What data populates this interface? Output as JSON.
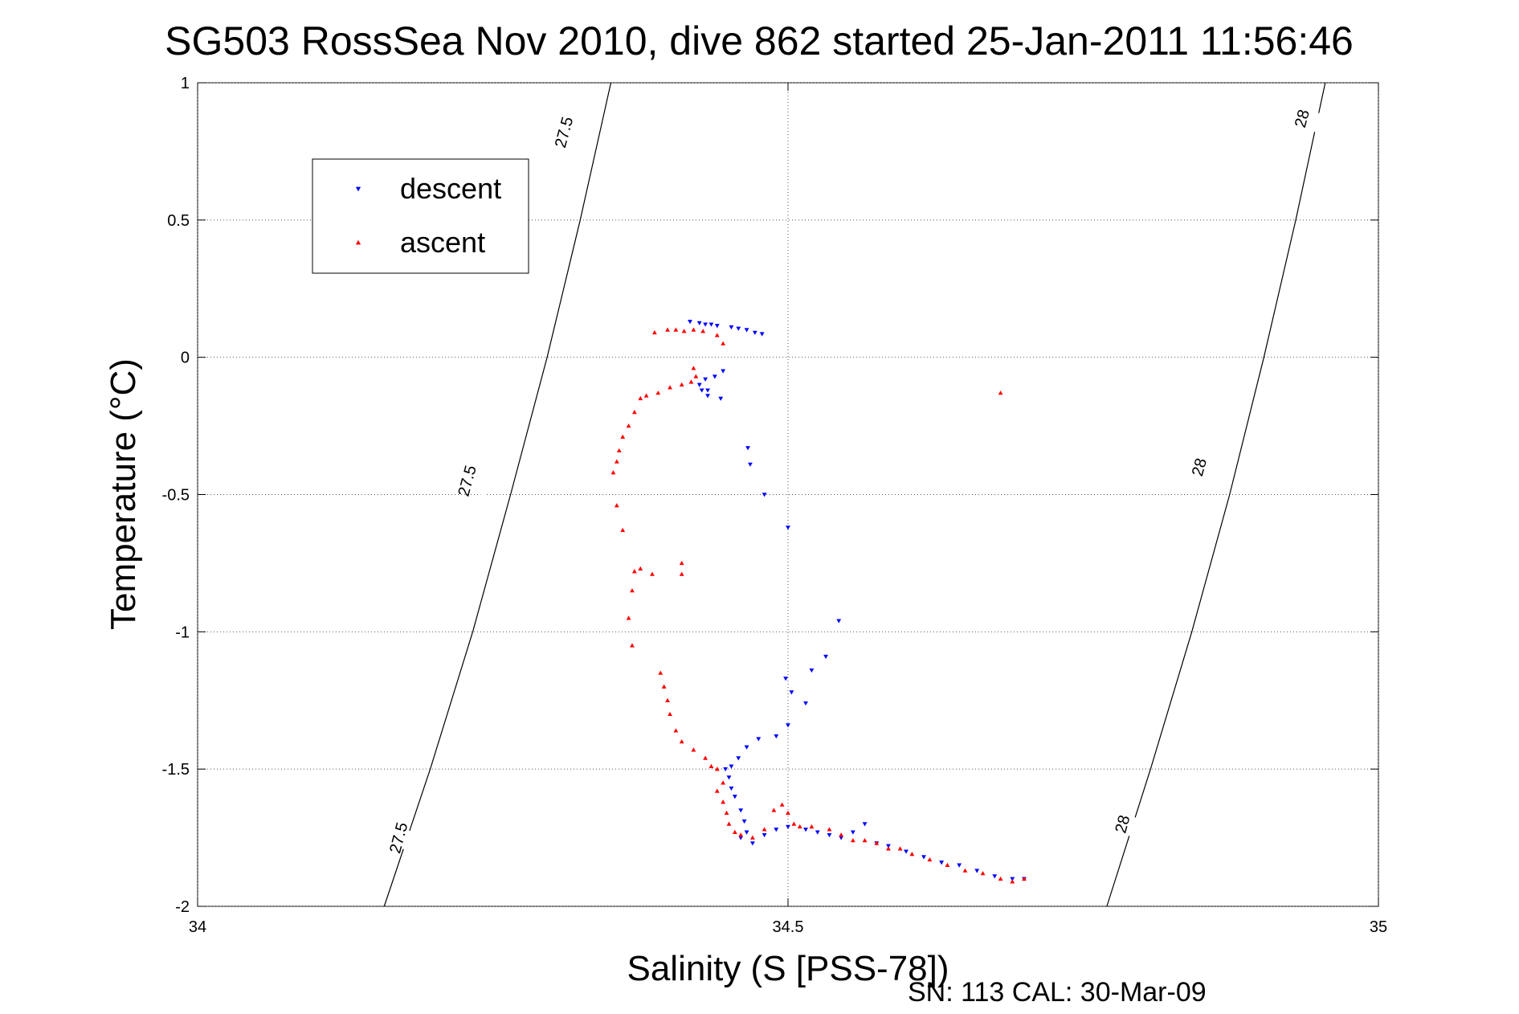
{
  "chart_data": {
    "type": "scatter",
    "title": "SG503 RossSea Nov 2010, dive 862 started 25-Jan-2011 11:56:46",
    "xlabel": "Salinity (S [PSS-78])",
    "ylabel": "Temperature (°C)",
    "footer": "SN: 113  CAL: 30-Mar-09",
    "xlim": [
      34,
      35
    ],
    "ylim": [
      -2,
      1
    ],
    "x_ticks": [
      {
        "value": 34,
        "label": "34"
      },
      {
        "value": 34.5,
        "label": "34.5"
      },
      {
        "value": 35,
        "label": "35"
      }
    ],
    "y_ticks": [
      {
        "value": 1,
        "label": "1"
      },
      {
        "value": 0.5,
        "label": "0.5"
      },
      {
        "value": 0,
        "label": "0"
      },
      {
        "value": -0.5,
        "label": "-0.5"
      },
      {
        "value": -1,
        "label": "-1"
      },
      {
        "value": -1.5,
        "label": "-1.5"
      },
      {
        "value": -2,
        "label": "-2"
      }
    ],
    "grid": true,
    "legend_position": "top-left",
    "contours": [
      {
        "level_label": "27.5",
        "points": [
          [
            34.158,
            -2
          ],
          [
            34.197,
            -1.5
          ],
          [
            34.233,
            -1
          ],
          [
            34.265,
            -0.5
          ],
          [
            34.296,
            0
          ],
          [
            34.324,
            0.5
          ],
          [
            34.35,
            1
          ]
        ],
        "labels_at": [
          [
            34.17,
            -1.75
          ],
          [
            34.228,
            -0.45
          ],
          [
            34.31,
            0.82
          ]
        ]
      },
      {
        "level_label": "28",
        "points": [
          [
            34.77,
            -2
          ],
          [
            34.807,
            -1.5
          ],
          [
            34.842,
            -1
          ],
          [
            34.874,
            -0.5
          ],
          [
            34.903,
            0
          ],
          [
            34.93,
            0.5
          ],
          [
            34.955,
            1
          ]
        ],
        "labels_at": [
          [
            34.783,
            -1.7
          ],
          [
            34.848,
            -0.4
          ],
          [
            34.935,
            0.87
          ]
        ]
      }
    ],
    "series": [
      {
        "name": "descent",
        "color": "#0000ff",
        "marker": "triangle-down",
        "points": [
          [
            34.417,
            0.13
          ],
          [
            34.425,
            0.125
          ],
          [
            34.43,
            0.12
          ],
          [
            34.435,
            0.12
          ],
          [
            34.44,
            0.115
          ],
          [
            34.452,
            0.11
          ],
          [
            34.458,
            0.105
          ],
          [
            34.465,
            0.1
          ],
          [
            34.472,
            0.09
          ],
          [
            34.478,
            0.085
          ],
          [
            34.43,
            -0.08
          ],
          [
            34.425,
            -0.1
          ],
          [
            34.427,
            -0.12
          ],
          [
            34.432,
            -0.12
          ],
          [
            34.438,
            -0.07
          ],
          [
            34.445,
            -0.05
          ],
          [
            34.443,
            -0.15
          ],
          [
            34.432,
            -0.14
          ],
          [
            34.466,
            -0.33
          ],
          [
            34.468,
            -0.39
          ],
          [
            34.48,
            -0.5
          ],
          [
            34.5,
            -0.62
          ],
          [
            34.543,
            -0.96
          ],
          [
            34.532,
            -1.09
          ],
          [
            34.52,
            -1.14
          ],
          [
            34.498,
            -1.17
          ],
          [
            34.503,
            -1.22
          ],
          [
            34.515,
            -1.26
          ],
          [
            34.5,
            -1.34
          ],
          [
            34.49,
            -1.38
          ],
          [
            34.475,
            -1.39
          ],
          [
            34.465,
            -1.42
          ],
          [
            34.458,
            -1.46
          ],
          [
            34.452,
            -1.49
          ],
          [
            34.447,
            -1.5
          ],
          [
            34.45,
            -1.53
          ],
          [
            34.452,
            -1.57
          ],
          [
            34.455,
            -1.6
          ],
          [
            34.46,
            -1.65
          ],
          [
            34.463,
            -1.69
          ],
          [
            34.465,
            -1.73
          ],
          [
            34.46,
            -1.75
          ],
          [
            34.47,
            -1.77
          ],
          [
            34.48,
            -1.74
          ],
          [
            34.49,
            -1.72
          ],
          [
            34.5,
            -1.71
          ],
          [
            34.515,
            -1.72
          ],
          [
            34.525,
            -1.73
          ],
          [
            34.535,
            -1.74
          ],
          [
            34.545,
            -1.75
          ],
          [
            34.555,
            -1.73
          ],
          [
            34.565,
            -1.7
          ],
          [
            34.575,
            -1.77
          ],
          [
            34.585,
            -1.78
          ],
          [
            34.6,
            -1.8
          ],
          [
            34.615,
            -1.82
          ],
          [
            34.63,
            -1.84
          ],
          [
            34.645,
            -1.85
          ],
          [
            34.66,
            -1.87
          ],
          [
            34.675,
            -1.89
          ],
          [
            34.69,
            -1.9
          ],
          [
            34.7,
            -1.9
          ]
        ]
      },
      {
        "name": "ascent",
        "color": "#ff0000",
        "marker": "triangle-up",
        "points": [
          [
            34.387,
            0.09
          ],
          [
            34.398,
            0.1
          ],
          [
            34.405,
            0.1
          ],
          [
            34.412,
            0.095
          ],
          [
            34.42,
            0.1
          ],
          [
            34.428,
            0.095
          ],
          [
            34.44,
            0.08
          ],
          [
            34.445,
            0.05
          ],
          [
            34.42,
            -0.04
          ],
          [
            34.422,
            -0.07
          ],
          [
            34.418,
            -0.09
          ],
          [
            34.41,
            -0.1
          ],
          [
            34.4,
            -0.11
          ],
          [
            34.39,
            -0.13
          ],
          [
            34.38,
            -0.14
          ],
          [
            34.375,
            -0.15
          ],
          [
            34.37,
            -0.2
          ],
          [
            34.365,
            -0.25
          ],
          [
            34.36,
            -0.29
          ],
          [
            34.357,
            -0.34
          ],
          [
            34.355,
            -0.38
          ],
          [
            34.352,
            -0.42
          ],
          [
            34.355,
            -0.54
          ],
          [
            34.36,
            -0.63
          ],
          [
            34.37,
            -0.78
          ],
          [
            34.375,
            -0.77
          ],
          [
            34.385,
            -0.79
          ],
          [
            34.41,
            -0.75
          ],
          [
            34.41,
            -0.79
          ],
          [
            34.368,
            -0.85
          ],
          [
            34.365,
            -0.95
          ],
          [
            34.368,
            -1.05
          ],
          [
            34.392,
            -1.15
          ],
          [
            34.395,
            -1.2
          ],
          [
            34.398,
            -1.25
          ],
          [
            34.4,
            -1.3
          ],
          [
            34.405,
            -1.36
          ],
          [
            34.41,
            -1.4
          ],
          [
            34.42,
            -1.43
          ],
          [
            34.43,
            -1.46
          ],
          [
            34.435,
            -1.49
          ],
          [
            34.44,
            -1.5
          ],
          [
            34.445,
            -1.55
          ],
          [
            34.44,
            -1.58
          ],
          [
            34.445,
            -1.62
          ],
          [
            34.448,
            -1.66
          ],
          [
            34.45,
            -1.7
          ],
          [
            34.455,
            -1.73
          ],
          [
            34.46,
            -1.74
          ],
          [
            34.47,
            -1.75
          ],
          [
            34.48,
            -1.72
          ],
          [
            34.488,
            -1.65
          ],
          [
            34.495,
            -1.63
          ],
          [
            34.5,
            -1.66
          ],
          [
            34.505,
            -1.7
          ],
          [
            34.51,
            -1.71
          ],
          [
            34.52,
            -1.71
          ],
          [
            34.535,
            -1.72
          ],
          [
            34.545,
            -1.74
          ],
          [
            34.555,
            -1.76
          ],
          [
            34.565,
            -1.76
          ],
          [
            34.575,
            -1.77
          ],
          [
            34.585,
            -1.79
          ],
          [
            34.595,
            -1.79
          ],
          [
            34.605,
            -1.81
          ],
          [
            34.62,
            -1.83
          ],
          [
            34.635,
            -1.85
          ],
          [
            34.65,
            -1.87
          ],
          [
            34.665,
            -1.88
          ],
          [
            34.68,
            -1.9
          ],
          [
            34.69,
            -1.91
          ],
          [
            34.7,
            -1.9
          ],
          [
            34.68,
            -0.13
          ]
        ]
      }
    ]
  }
}
